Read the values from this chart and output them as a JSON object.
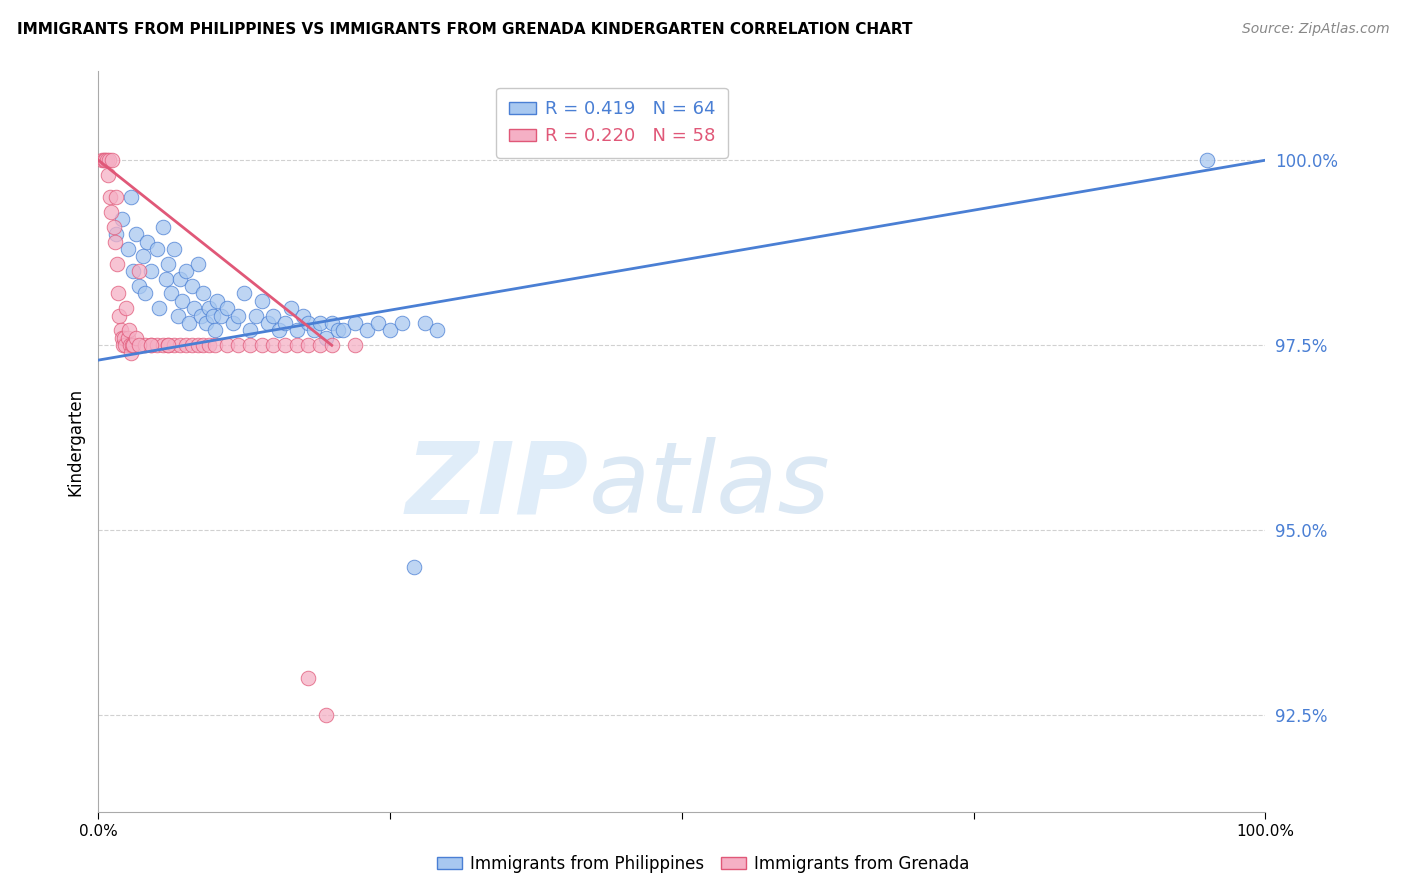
{
  "title": "IMMIGRANTS FROM PHILIPPINES VS IMMIGRANTS FROM GRENADA KINDERGARTEN CORRELATION CHART",
  "source": "Source: ZipAtlas.com",
  "ylabel": "Kindergarten",
  "yticks": [
    92.5,
    95.0,
    97.5,
    100.0
  ],
  "ytick_labels": [
    "92.5%",
    "95.0%",
    "97.5%",
    "100.0%"
  ],
  "xlim": [
    0.0,
    100.0
  ],
  "ylim": [
    91.2,
    101.2
  ],
  "blue_R": 0.419,
  "blue_N": 64,
  "pink_R": 0.22,
  "pink_N": 58,
  "blue_color": "#a8c8f0",
  "pink_color": "#f5b0c5",
  "blue_line_color": "#4a7fd4",
  "pink_line_color": "#e05878",
  "legend_label_blue": "Immigrants from Philippines",
  "legend_label_pink": "Immigrants from Grenada",
  "watermark_zip": "ZIP",
  "watermark_atlas": "atlas",
  "blue_x": [
    1.5,
    2.0,
    2.5,
    2.8,
    3.0,
    3.2,
    3.5,
    3.8,
    4.0,
    4.2,
    4.5,
    5.0,
    5.2,
    5.5,
    5.8,
    6.0,
    6.2,
    6.5,
    6.8,
    7.0,
    7.2,
    7.5,
    7.8,
    8.0,
    8.2,
    8.5,
    8.8,
    9.0,
    9.2,
    9.5,
    9.8,
    10.0,
    10.2,
    10.5,
    11.0,
    11.5,
    12.0,
    12.5,
    13.0,
    13.5,
    14.0,
    14.5,
    15.0,
    15.5,
    16.0,
    16.5,
    17.0,
    17.5,
    18.0,
    18.5,
    19.0,
    19.5,
    20.0,
    20.5,
    21.0,
    22.0,
    23.0,
    24.0,
    25.0,
    26.0,
    27.0,
    28.0,
    29.0,
    95.0
  ],
  "blue_y": [
    99.0,
    99.2,
    98.8,
    99.5,
    98.5,
    99.0,
    98.3,
    98.7,
    98.2,
    98.9,
    98.5,
    98.8,
    98.0,
    99.1,
    98.4,
    98.6,
    98.2,
    98.8,
    97.9,
    98.4,
    98.1,
    98.5,
    97.8,
    98.3,
    98.0,
    98.6,
    97.9,
    98.2,
    97.8,
    98.0,
    97.9,
    97.7,
    98.1,
    97.9,
    98.0,
    97.8,
    97.9,
    98.2,
    97.7,
    97.9,
    98.1,
    97.8,
    97.9,
    97.7,
    97.8,
    98.0,
    97.7,
    97.9,
    97.8,
    97.7,
    97.8,
    97.6,
    97.8,
    97.7,
    97.7,
    97.8,
    97.7,
    97.8,
    97.7,
    97.8,
    94.5,
    97.8,
    97.7,
    100.0
  ],
  "pink_x": [
    0.3,
    0.5,
    0.6,
    0.7,
    0.8,
    0.9,
    1.0,
    1.1,
    1.2,
    1.3,
    1.4,
    1.5,
    1.6,
    1.7,
    1.8,
    1.9,
    2.0,
    2.1,
    2.2,
    2.3,
    2.4,
    2.5,
    2.6,
    2.7,
    2.8,
    2.9,
    3.0,
    3.2,
    3.5,
    4.0,
    4.5,
    5.0,
    5.5,
    6.0,
    6.5,
    7.0,
    7.5,
    8.0,
    8.5,
    9.0,
    9.5,
    10.0,
    11.0,
    12.0,
    13.0,
    14.0,
    15.0,
    16.0,
    17.0,
    18.0,
    19.0,
    20.0,
    22.0,
    3.5,
    4.5,
    6.0,
    18.0,
    19.5
  ],
  "pink_y": [
    100.0,
    100.0,
    100.0,
    100.0,
    99.8,
    100.0,
    99.5,
    99.3,
    100.0,
    99.1,
    98.9,
    99.5,
    98.6,
    98.2,
    97.9,
    97.7,
    97.6,
    97.5,
    97.6,
    97.5,
    98.0,
    97.6,
    97.7,
    97.5,
    97.4,
    97.5,
    97.5,
    97.6,
    98.5,
    97.5,
    97.5,
    97.5,
    97.5,
    97.5,
    97.5,
    97.5,
    97.5,
    97.5,
    97.5,
    97.5,
    97.5,
    97.5,
    97.5,
    97.5,
    97.5,
    97.5,
    97.5,
    97.5,
    97.5,
    97.5,
    97.5,
    97.5,
    97.5,
    97.5,
    97.5,
    97.5,
    93.0,
    92.5
  ],
  "blue_trend_x": [
    0.0,
    100.0
  ],
  "blue_trend_y": [
    97.3,
    100.0
  ],
  "pink_trend_x": [
    0.0,
    20.0
  ],
  "pink_trend_y": [
    100.0,
    97.5
  ]
}
